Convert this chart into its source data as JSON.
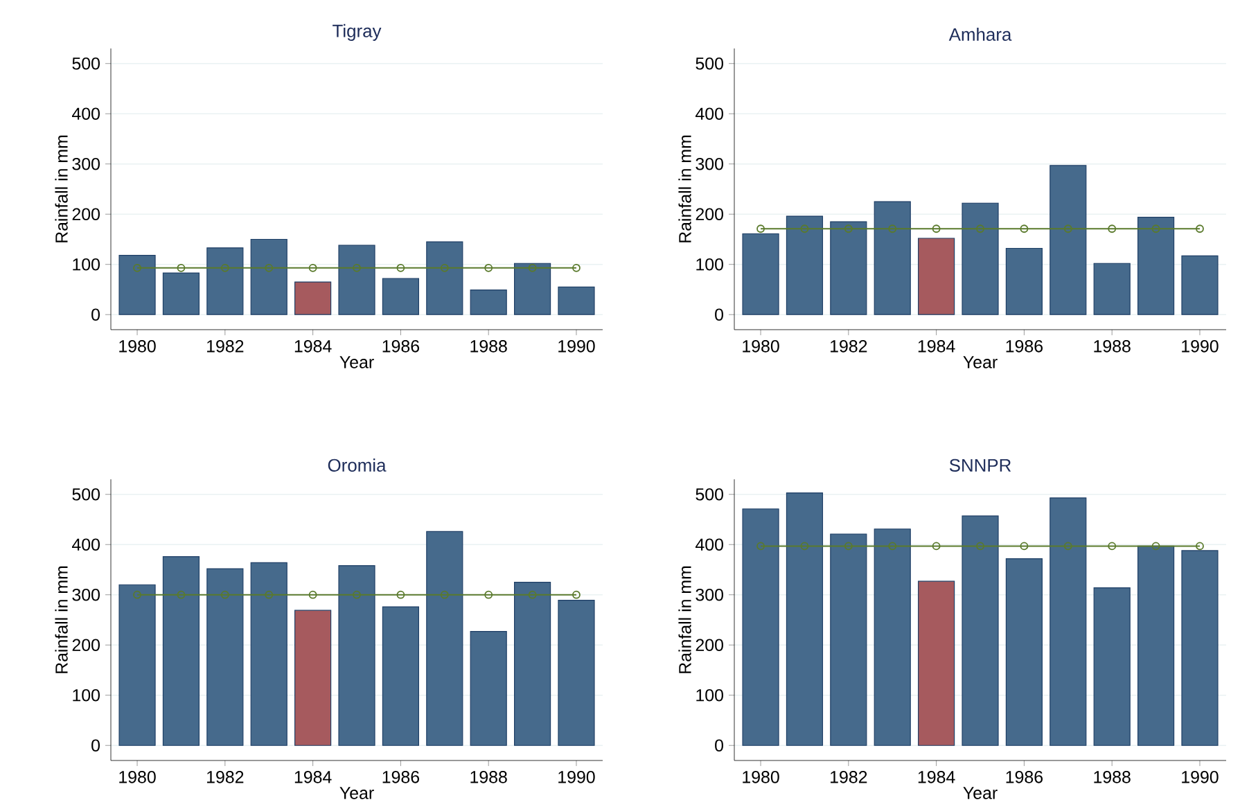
{
  "chart_data": [
    {
      "type": "bar",
      "title": "Tigray",
      "xlabel": "Year",
      "ylabel": "Rainfall in mm",
      "x": [
        1980,
        1981,
        1982,
        1983,
        1984,
        1985,
        1986,
        1987,
        1988,
        1989,
        1990
      ],
      "xlim": [
        1979.4,
        1990.6
      ],
      "xticks": [
        1980,
        1982,
        1984,
        1986,
        1988,
        1990
      ],
      "ylim": [
        -30,
        530
      ],
      "yticks": [
        0,
        100,
        200,
        300,
        400,
        500
      ],
      "grid": "y",
      "series": [
        {
          "colors": [
            "#466a8c",
            "#466a8c",
            "#466a8c",
            "#466a8c",
            "#a65a5e",
            "#466a8c",
            "#466a8c",
            "#466a8c",
            "#466a8c",
            "#466a8c",
            "#466a8c"
          ],
          "values": [
            118,
            83,
            133,
            150,
            65,
            138,
            72,
            145,
            49,
            102,
            55
          ]
        },
        {
          "type": "line",
          "color": "#5a7a2c",
          "marker": "circle",
          "values": [
            93,
            93,
            93,
            93,
            93,
            93,
            93,
            93,
            93,
            93,
            93
          ]
        }
      ]
    },
    {
      "type": "bar",
      "title": "Amhara",
      "xlabel": "Year",
      "ylabel": "Rainfall in mm",
      "x": [
        1980,
        1981,
        1982,
        1983,
        1984,
        1985,
        1986,
        1987,
        1988,
        1989,
        1990
      ],
      "xlim": [
        1979.4,
        1990.6
      ],
      "xticks": [
        1980,
        1982,
        1984,
        1986,
        1988,
        1990
      ],
      "ylim": [
        -30,
        530
      ],
      "yticks": [
        0,
        100,
        200,
        300,
        400,
        500
      ],
      "grid": "y",
      "series": [
        {
          "colors": [
            "#466a8c",
            "#466a8c",
            "#466a8c",
            "#466a8c",
            "#a65a5e",
            "#466a8c",
            "#466a8c",
            "#466a8c",
            "#466a8c",
            "#466a8c",
            "#466a8c"
          ],
          "values": [
            161,
            196,
            185,
            225,
            152,
            222,
            132,
            297,
            102,
            194,
            117
          ]
        },
        {
          "type": "line",
          "color": "#5a7a2c",
          "marker": "circle",
          "values": [
            171,
            171,
            171,
            171,
            171,
            171,
            171,
            171,
            171,
            171,
            171
          ]
        }
      ]
    },
    {
      "type": "bar",
      "title": "Oromia",
      "xlabel": "Year",
      "ylabel": "Rainfall in mm",
      "x": [
        1980,
        1981,
        1982,
        1983,
        1984,
        1985,
        1986,
        1987,
        1988,
        1989,
        1990
      ],
      "xlim": [
        1979.4,
        1990.6
      ],
      "xticks": [
        1980,
        1982,
        1984,
        1986,
        1988,
        1990
      ],
      "ylim": [
        -30,
        530
      ],
      "yticks": [
        0,
        100,
        200,
        300,
        400,
        500
      ],
      "grid": "y",
      "series": [
        {
          "colors": [
            "#466a8c",
            "#466a8c",
            "#466a8c",
            "#466a8c",
            "#a65a5e",
            "#466a8c",
            "#466a8c",
            "#466a8c",
            "#466a8c",
            "#466a8c",
            "#466a8c"
          ],
          "values": [
            320,
            376,
            352,
            364,
            269,
            358,
            276,
            426,
            227,
            325,
            289
          ]
        },
        {
          "type": "line",
          "color": "#5a7a2c",
          "marker": "circle",
          "values": [
            300,
            300,
            300,
            300,
            300,
            300,
            300,
            300,
            300,
            300,
            300
          ]
        }
      ]
    },
    {
      "type": "bar",
      "title": "SNNPR",
      "xlabel": "Year",
      "ylabel": "Rainfall in mm",
      "x": [
        1980,
        1981,
        1982,
        1983,
        1984,
        1985,
        1986,
        1987,
        1988,
        1989,
        1990
      ],
      "xlim": [
        1979.4,
        1990.6
      ],
      "xticks": [
        1980,
        1982,
        1984,
        1986,
        1988,
        1990
      ],
      "ylim": [
        -30,
        530
      ],
      "yticks": [
        0,
        100,
        200,
        300,
        400,
        500
      ],
      "grid": "y",
      "series": [
        {
          "colors": [
            "#466a8c",
            "#466a8c",
            "#466a8c",
            "#466a8c",
            "#a65a5e",
            "#466a8c",
            "#466a8c",
            "#466a8c",
            "#466a8c",
            "#466a8c",
            "#466a8c"
          ],
          "values": [
            471,
            503,
            421,
            431,
            327,
            457,
            372,
            493,
            314,
            397,
            388
          ]
        },
        {
          "type": "line",
          "color": "#5a7a2c",
          "marker": "circle",
          "values": [
            397,
            397,
            397,
            397,
            397,
            397,
            397,
            397,
            397,
            397,
            397
          ]
        }
      ]
    }
  ]
}
